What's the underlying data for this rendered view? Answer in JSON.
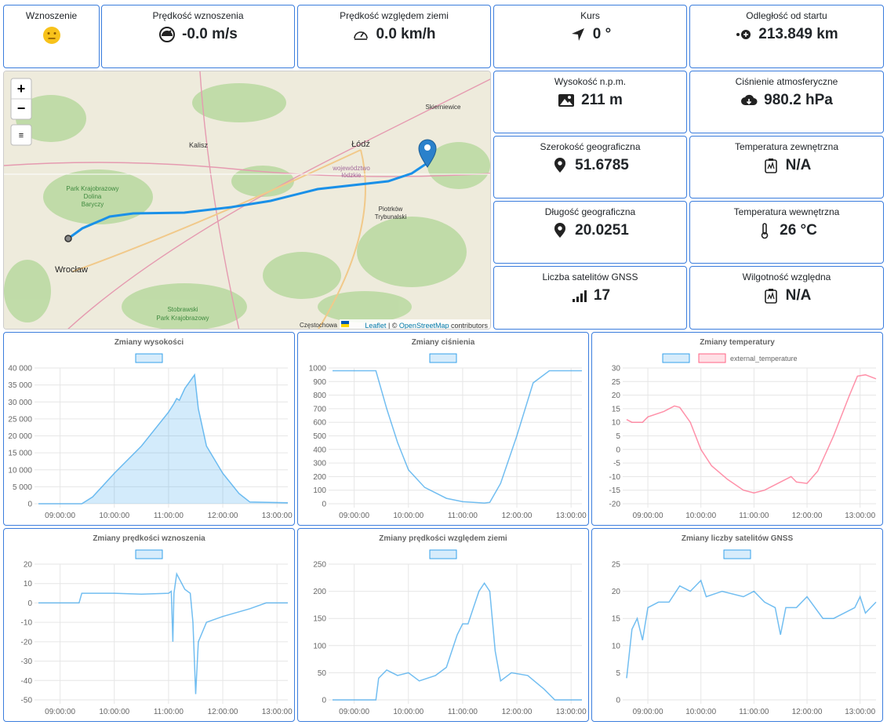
{
  "tiles": [
    {
      "label": "Wznoszenie"
    },
    {
      "label": "Prędkość wznoszenia",
      "value": "-0.0 m/s"
    },
    {
      "label": "Prędkość względem ziemi",
      "value": "0.0 km/h"
    },
    {
      "label": "Kurs",
      "value": "0 °"
    },
    {
      "label": "Odległość od startu",
      "value": "213.849 km"
    },
    {
      "label": "Wysokość n.p.m.",
      "value": "211 m"
    },
    {
      "label": "Ciśnienie atmosferyczne",
      "value": "980.2 hPa"
    },
    {
      "label": "Szerokość geograficzna",
      "value": "51.6785"
    },
    {
      "label": "Temperatura zewnętrzna",
      "value": "N/A"
    },
    {
      "label": "Długość geograficzna",
      "value": "20.0251"
    },
    {
      "label": "Temperatura wewnętrzna",
      "value": "26 °C"
    },
    {
      "label": "Liczba satelitów GNSS",
      "value": "17"
    },
    {
      "label": "Wilgotność względna",
      "value": "N/A"
    }
  ],
  "map": {
    "zoom_in": "+",
    "zoom_out": "−",
    "labels": [
      "Skierniewice",
      "Kalisz",
      "Łódź",
      "województwo",
      "łódzkie",
      "Piotrków",
      "Trybunalski",
      "Park Krajobrazowy",
      "Dolina",
      "Baryczy",
      "Wrocław",
      "Stobrawski",
      "Park Krajobrazowy",
      "Częstochowa"
    ],
    "attribution": {
      "leaflet": "Leaflet",
      "sep": " | © ",
      "osm": "OpenStreetMap",
      "rest": " contributors"
    }
  },
  "charts": [
    {
      "type": "line",
      "title": "Zmiany wysokości",
      "fill": true,
      "x": [
        8.6,
        9.4,
        9.6,
        10,
        10.5,
        11,
        11.1,
        11.15,
        11.2,
        11.3,
        11.48,
        11.55,
        11.7,
        12,
        12.3,
        12.5,
        13.2
      ],
      "series": [
        {
          "color": "#36a2eb",
          "values": [
            0,
            0,
            2000,
            9000,
            17000,
            27000,
            29500,
            31000,
            30500,
            34000,
            38000,
            28000,
            17000,
            9000,
            3000,
            500,
            300
          ]
        }
      ],
      "xlim": [
        8.6,
        13.2
      ],
      "xticks": [
        {
          "value": 9,
          "label": "09:00:00"
        },
        {
          "value": 10,
          "label": "10:00:00"
        },
        {
          "value": 11,
          "label": "11:00:00"
        },
        {
          "value": 12,
          "label": "12:00:00"
        },
        {
          "value": 13,
          "label": "13:00:00"
        }
      ],
      "ylim": [
        0,
        40000
      ],
      "yticks": [
        0,
        {
          "value": 5000,
          "label": "5 000"
        },
        {
          "value": 10000,
          "label": "10 000"
        },
        {
          "value": 15000,
          "label": "15 000"
        },
        {
          "value": 20000,
          "label": "20 000"
        },
        {
          "value": 25000,
          "label": "25 000"
        },
        {
          "value": 30000,
          "label": "30 000"
        },
        {
          "value": 35000,
          "label": "35 000"
        },
        {
          "value": 40000,
          "label": "40 000"
        }
      ]
    },
    {
      "type": "line",
      "title": "Zmiany ciśnienia",
      "x": [
        8.6,
        9.4,
        9.6,
        9.8,
        10,
        10.3,
        10.7,
        11,
        11.4,
        11.5,
        11.7,
        12,
        12.3,
        12.6,
        13.2
      ],
      "series": [
        {
          "color": "#36a2eb",
          "values": [
            980,
            980,
            700,
            450,
            250,
            120,
            40,
            15,
            5,
            10,
            150,
            500,
            890,
            980,
            980
          ]
        }
      ],
      "xlim": [
        8.6,
        13.2
      ],
      "xticks": [
        {
          "value": 9,
          "label": "09:00:00"
        },
        {
          "value": 10,
          "label": "10:00:00"
        },
        {
          "value": 11,
          "label": "11:00:00"
        },
        {
          "value": 12,
          "label": "12:00:00"
        },
        {
          "value": 13,
          "label": "13:00:00"
        }
      ],
      "ylim": [
        0,
        1000
      ],
      "yticks": [
        0,
        100,
        200,
        300,
        400,
        500,
        600,
        700,
        800,
        900,
        1000
      ]
    },
    {
      "type": "line",
      "title": "Zmiany temperatury",
      "x": [
        8.6,
        8.7,
        8.9,
        9,
        9.3,
        9.5,
        9.6,
        9.8,
        10,
        10.2,
        10.5,
        10.8,
        11,
        11.2,
        11.5,
        11.7,
        11.8,
        12,
        12.2,
        12.5,
        12.8,
        12.95,
        13.1,
        13.3
      ],
      "series": [
        {
          "color": "#36a2eb",
          "values": [
            null,
            null,
            null,
            null,
            null,
            null,
            null,
            null,
            null,
            null,
            null,
            null,
            null,
            null,
            null,
            null,
            null,
            null,
            null,
            null,
            null,
            null,
            null,
            null
          ]
        },
        {
          "name": "external_temperature",
          "color": "#ff6384",
          "values": [
            11,
            10,
            10,
            12,
            14,
            16,
            15.5,
            10,
            0,
            -6,
            -11,
            -15,
            -16,
            -15,
            -12,
            -10,
            -12,
            -12.5,
            -8,
            5,
            20,
            27,
            27.5,
            26
          ]
        }
      ],
      "xlim": [
        8.6,
        13.3
      ],
      "xticks": [
        {
          "value": 9,
          "label": "09:00:00"
        },
        {
          "value": 10,
          "label": "10:00:00"
        },
        {
          "value": 11,
          "label": "11:00:00"
        },
        {
          "value": 12,
          "label": "12:00:00"
        },
        {
          "value": 13,
          "label": "13:00:00"
        }
      ],
      "ylim": [
        -20,
        30
      ],
      "yticks": [
        -20,
        -15,
        -10,
        -5,
        0,
        5,
        10,
        15,
        20,
        25,
        30
      ]
    },
    {
      "type": "line",
      "title": "Zmiany prędkości wznoszenia",
      "x": [
        8.6,
        9.35,
        9.4,
        10,
        10.5,
        11,
        11.05,
        11.08,
        11.1,
        11.15,
        11.3,
        11.4,
        11.45,
        11.5,
        11.55,
        11.7,
        12,
        12.5,
        12.8,
        13.2
      ],
      "series": [
        {
          "color": "#36a2eb",
          "values": [
            0,
            0,
            5,
            5,
            4.5,
            5,
            6,
            -20,
            5,
            15,
            7,
            5,
            -10,
            -47,
            -20,
            -10,
            -7,
            -3,
            0,
            0
          ]
        }
      ],
      "xlim": [
        8.6,
        13.2
      ],
      "xticks": [
        {
          "value": 9,
          "label": "09:00:00"
        },
        {
          "value": 10,
          "label": "10:00:00"
        },
        {
          "value": 11,
          "label": "11:00:00"
        },
        {
          "value": 12,
          "label": "12:00:00"
        },
        {
          "value": 13,
          "label": "13:00:00"
        }
      ],
      "ylim": [
        -50,
        20
      ],
      "yticks": [
        -50,
        -40,
        -30,
        -20,
        -10,
        0,
        10,
        20
      ]
    },
    {
      "type": "line",
      "title": "Zmiany prędkości względem ziemi",
      "x": [
        8.6,
        9.4,
        9.45,
        9.6,
        9.8,
        10,
        10.2,
        10.5,
        10.7,
        10.9,
        11,
        11.1,
        11.2,
        11.3,
        11.4,
        11.5,
        11.6,
        11.7,
        11.9,
        12.2,
        12.5,
        12.7,
        13.2
      ],
      "series": [
        {
          "color": "#36a2eb",
          "values": [
            0,
            0,
            40,
            55,
            45,
            50,
            35,
            45,
            60,
            120,
            140,
            140,
            170,
            200,
            215,
            200,
            90,
            35,
            50,
            45,
            20,
            0,
            0
          ]
        }
      ],
      "xlim": [
        8.6,
        13.2
      ],
      "xticks": [
        {
          "value": 9,
          "label": "09:00:00"
        },
        {
          "value": 10,
          "label": "10:00:00"
        },
        {
          "value": 11,
          "label": "11:00:00"
        },
        {
          "value": 12,
          "label": "12:00:00"
        },
        {
          "value": 13,
          "label": "13:00:00"
        }
      ],
      "ylim": [
        0,
        250
      ],
      "yticks": [
        0,
        50,
        100,
        150,
        200,
        250
      ]
    },
    {
      "type": "line",
      "title": "Zmiany liczby satelitów GNSS",
      "x": [
        8.6,
        8.7,
        8.8,
        8.9,
        9,
        9.2,
        9.4,
        9.6,
        9.8,
        10,
        10.1,
        10.4,
        10.8,
        11,
        11.2,
        11.4,
        11.5,
        11.6,
        11.8,
        12,
        12.3,
        12.5,
        12.9,
        13,
        13.1,
        13.3
      ],
      "series": [
        {
          "color": "#36a2eb",
          "values": [
            4,
            13,
            15,
            11,
            17,
            18,
            18,
            21,
            20,
            22,
            19,
            20,
            19,
            20,
            18,
            17,
            12,
            17,
            17,
            19,
            15,
            15,
            17,
            19,
            16,
            18
          ]
        }
      ],
      "xlim": [
        8.6,
        13.3
      ],
      "xticks": [
        {
          "value": 9,
          "label": "09:00:00"
        },
        {
          "value": 10,
          "label": "10:00:00"
        },
        {
          "value": 11,
          "label": "11:00:00"
        },
        {
          "value": 12,
          "label": "12:00:00"
        },
        {
          "value": 13,
          "label": "13:00:00"
        }
      ],
      "ylim": [
        0,
        25
      ],
      "yticks": [
        0,
        5,
        10,
        15,
        20,
        25
      ]
    }
  ]
}
